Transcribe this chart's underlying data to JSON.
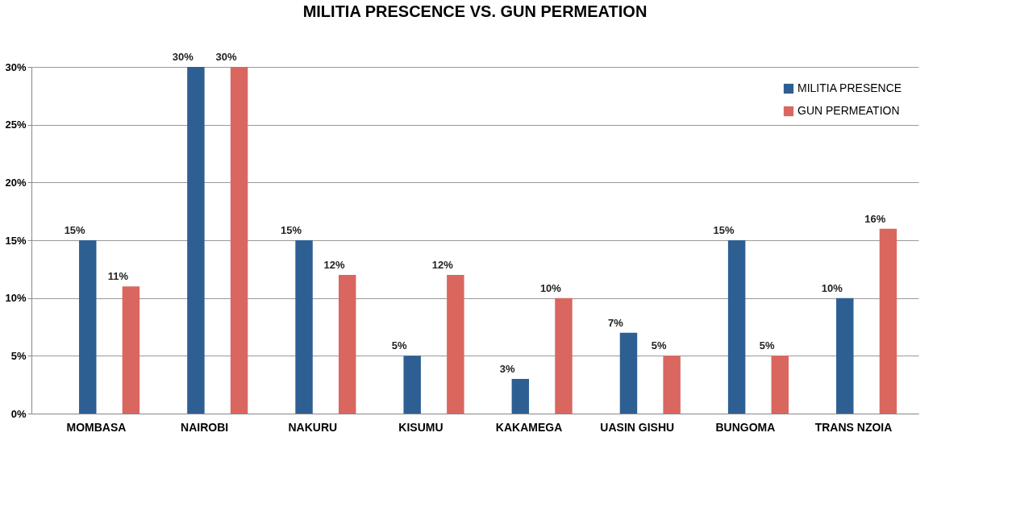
{
  "chart_data": {
    "type": "bar",
    "title": "MILITIA PRESCENCE VS. GUN PERMEATION",
    "categories": [
      "MOMBASA",
      "NAIROBI",
      "NAKURU",
      "KISUMU",
      "KAKAMEGA",
      "UASIN GISHU",
      "BUNGOMA",
      "TRANS NZOIA"
    ],
    "series": [
      {
        "name": "MILITIA PRESENCE",
        "color": "#2e5f93",
        "values": [
          15,
          30,
          15,
          5,
          3,
          7,
          15,
          10
        ]
      },
      {
        "name": "GUN PERMEATION",
        "color": "#d9675f",
        "values": [
          11,
          30,
          12,
          12,
          10,
          5,
          5,
          16
        ]
      }
    ],
    "ylim": [
      0,
      30
    ],
    "yticks": [
      {
        "value": 0,
        "label": "0%"
      },
      {
        "value": 5,
        "label": "5%"
      },
      {
        "value": 10,
        "label": "10%"
      },
      {
        "value": 15,
        "label": "15%"
      },
      {
        "value": 20,
        "label": "20%"
      },
      {
        "value": 25,
        "label": "25%"
      },
      {
        "value": 30,
        "label": "30%"
      }
    ],
    "value_labels": [
      [
        "15%",
        "30%",
        "15%",
        "5%",
        "3%",
        "7%",
        "15%",
        "10%"
      ],
      [
        "11%",
        "30%",
        "12%",
        "12%",
        "10%",
        "5%",
        "5%",
        "16%"
      ]
    ],
    "grid": "y",
    "legend": "top right"
  }
}
